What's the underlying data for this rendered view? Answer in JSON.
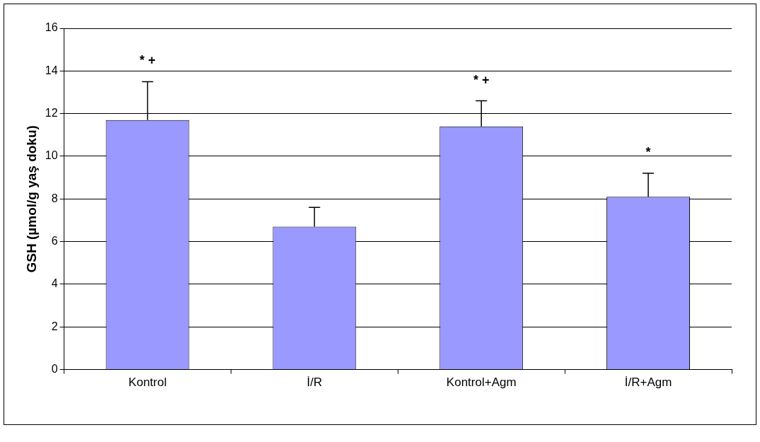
{
  "chart_data": {
    "type": "bar",
    "ylabel": "GSH (µmol/g yaş doku)",
    "categories": [
      "Kontrol",
      "İ/R",
      "Kontrol+Agm",
      "İ/R+Agm"
    ],
    "values": [
      11.7,
      6.7,
      11.4,
      8.1
    ],
    "errors": [
      [
        11.7,
        13.5
      ],
      [
        6.7,
        7.6
      ],
      [
        11.4,
        12.6
      ],
      [
        8.1,
        9.2
      ]
    ],
    "color": "#9999ff",
    "ylim": [
      0,
      16
    ],
    "yticks": [
      0,
      2,
      4,
      6,
      8,
      10,
      12,
      14,
      16
    ],
    "grid": "y",
    "legend": false,
    "annotations": [
      {
        "text": "* +",
        "x": "Kontrol",
        "y": 13.5
      },
      {
        "text": "* +",
        "x": "Kontrol+Agm",
        "y": 12.6
      },
      {
        "text": "*",
        "x": "İ/R+Agm",
        "y": 9.2
      }
    ]
  }
}
